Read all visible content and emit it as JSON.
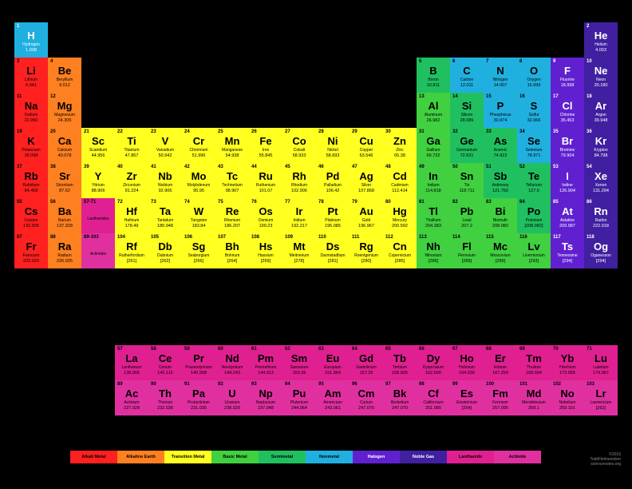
{
  "colors": {
    "alkali": "#ff2020",
    "alkaline": "#ff8020",
    "transition": "#ffff20",
    "basic": "#40d040",
    "semimetal": "#20c060",
    "nonmetal": "#20b0e0",
    "halogen": "#6020d0",
    "noble": "#4020a0",
    "lanthanide": "#e02090",
    "actinide": "#e030a0"
  },
  "legend": [
    {
      "label": "Alkali Metal",
      "c": "alkali"
    },
    {
      "label": "Alkaline Earth",
      "c": "alkaline"
    },
    {
      "label": "Transition Metal",
      "c": "transition"
    },
    {
      "label": "Basic Metal",
      "c": "basic"
    },
    {
      "label": "Semimetal",
      "c": "semimetal"
    },
    {
      "label": "Nonmetal",
      "c": "nonmetal"
    },
    {
      "label": "Halogen",
      "c": "halogen"
    },
    {
      "label": "Noble Gas",
      "c": "noble"
    },
    {
      "label": "Lanthanide",
      "c": "lanthanide"
    },
    {
      "label": "Actinide",
      "c": "actinide"
    }
  ],
  "credit": "©2016\nToddHelmenstine\nsciencenotes.org",
  "lanth_label": {
    "n": "57-71",
    "name": "Lanthanides",
    "c": "lanthanide"
  },
  "act_label": {
    "n": "89-103",
    "name": "Actinides",
    "c": "actinide"
  },
  "rows": [
    [
      {
        "n": 1,
        "s": "H",
        "name": "Hydrogen",
        "m": "1.008",
        "c": "nonmetal",
        "fg": "#fff"
      },
      null,
      null,
      null,
      null,
      null,
      null,
      null,
      null,
      null,
      null,
      null,
      null,
      null,
      null,
      null,
      null,
      {
        "n": 2,
        "s": "He",
        "name": "Helium",
        "m": "4.003",
        "c": "noble",
        "fg": "#fff"
      }
    ],
    [
      {
        "n": 3,
        "s": "Li",
        "name": "Lithium",
        "m": "6.941",
        "c": "alkali"
      },
      {
        "n": 4,
        "s": "Be",
        "name": "Beryllium",
        "m": "9.012",
        "c": "alkaline"
      },
      null,
      null,
      null,
      null,
      null,
      null,
      null,
      null,
      null,
      null,
      {
        "n": 5,
        "s": "B",
        "name": "Boron",
        "m": "10.811",
        "c": "semimetal"
      },
      {
        "n": 6,
        "s": "C",
        "name": "Carbon",
        "m": "12.011",
        "c": "nonmetal"
      },
      {
        "n": 7,
        "s": "N",
        "name": "Nitrogen",
        "m": "14.007",
        "c": "nonmetal"
      },
      {
        "n": 8,
        "s": "O",
        "name": "Oxygen",
        "m": "15.999",
        "c": "nonmetal"
      },
      {
        "n": 9,
        "s": "F",
        "name": "Fluorine",
        "m": "18.998",
        "c": "halogen",
        "fg": "#fff"
      },
      {
        "n": 10,
        "s": "Ne",
        "name": "Neon",
        "m": "20.180",
        "c": "noble",
        "fg": "#fff"
      }
    ],
    [
      {
        "n": 11,
        "s": "Na",
        "name": "Sodium",
        "m": "22.990",
        "c": "alkali"
      },
      {
        "n": 12,
        "s": "Mg",
        "name": "Magnesium",
        "m": "24.305",
        "c": "alkaline"
      },
      null,
      null,
      null,
      null,
      null,
      null,
      null,
      null,
      null,
      null,
      {
        "n": 13,
        "s": "Al",
        "name": "Aluminum",
        "m": "26.982",
        "c": "basic"
      },
      {
        "n": 14,
        "s": "Si",
        "name": "Silicon",
        "m": "28.086",
        "c": "semimetal"
      },
      {
        "n": 15,
        "s": "P",
        "name": "Phosphorus",
        "m": "30.974",
        "c": "nonmetal"
      },
      {
        "n": 16,
        "s": "S",
        "name": "Sulfur",
        "m": "32.066",
        "c": "nonmetal"
      },
      {
        "n": 17,
        "s": "Cl",
        "name": "Chlorine",
        "m": "35.453",
        "c": "halogen",
        "fg": "#fff"
      },
      {
        "n": 18,
        "s": "Ar",
        "name": "Argon",
        "m": "39.948",
        "c": "noble",
        "fg": "#fff"
      }
    ],
    [
      {
        "n": 19,
        "s": "K",
        "name": "Potassium",
        "m": "39.098",
        "c": "alkali"
      },
      {
        "n": 20,
        "s": "Ca",
        "name": "Calcium",
        "m": "40.078",
        "c": "alkaline"
      },
      {
        "n": 21,
        "s": "Sc",
        "name": "Scandium",
        "m": "44.956",
        "c": "transition"
      },
      {
        "n": 22,
        "s": "Ti",
        "name": "Titanium",
        "m": "47.867",
        "c": "transition"
      },
      {
        "n": 23,
        "s": "V",
        "name": "Vanadium",
        "m": "50.942",
        "c": "transition"
      },
      {
        "n": 24,
        "s": "Cr",
        "name": "Chromium",
        "m": "51.996",
        "c": "transition"
      },
      {
        "n": 25,
        "s": "Mn",
        "name": "Manganese",
        "m": "54.938",
        "c": "transition"
      },
      {
        "n": 26,
        "s": "Fe",
        "name": "Iron",
        "m": "55.845",
        "c": "transition"
      },
      {
        "n": 27,
        "s": "Co",
        "name": "Cobalt",
        "m": "58.933",
        "c": "transition"
      },
      {
        "n": 28,
        "s": "Ni",
        "name": "Nickel",
        "m": "58.693",
        "c": "transition"
      },
      {
        "n": 29,
        "s": "Cu",
        "name": "Copper",
        "m": "63.546",
        "c": "transition"
      },
      {
        "n": 30,
        "s": "Zn",
        "name": "Zinc",
        "m": "65.38",
        "c": "transition"
      },
      {
        "n": 31,
        "s": "Ga",
        "name": "Gallium",
        "m": "69.732",
        "c": "basic"
      },
      {
        "n": 32,
        "s": "Ge",
        "name": "Germanium",
        "m": "72.631",
        "c": "semimetal"
      },
      {
        "n": 33,
        "s": "As",
        "name": "Arsenic",
        "m": "74.922",
        "c": "semimetal"
      },
      {
        "n": 34,
        "s": "Se",
        "name": "Selenium",
        "m": "78.971",
        "c": "nonmetal"
      },
      {
        "n": 35,
        "s": "Br",
        "name": "Bromine",
        "m": "79.904",
        "c": "halogen",
        "fg": "#fff"
      },
      {
        "n": 36,
        "s": "Kr",
        "name": "Krypton",
        "m": "84.798",
        "c": "noble",
        "fg": "#fff"
      }
    ],
    [
      {
        "n": 37,
        "s": "Rb",
        "name": "Rubidium",
        "m": "84.468",
        "c": "alkali"
      },
      {
        "n": 38,
        "s": "Sr",
        "name": "Strontium",
        "m": "87.62",
        "c": "alkaline"
      },
      {
        "n": 39,
        "s": "Y",
        "name": "Yttrium",
        "m": "88.906",
        "c": "transition"
      },
      {
        "n": 40,
        "s": "Zr",
        "name": "Zirconium",
        "m": "91.224",
        "c": "transition"
      },
      {
        "n": 41,
        "s": "Nb",
        "name": "Niobium",
        "m": "92.906",
        "c": "transition"
      },
      {
        "n": 42,
        "s": "Mo",
        "name": "Molybdenum",
        "m": "95.95",
        "c": "transition"
      },
      {
        "n": 43,
        "s": "Tc",
        "name": "Technetium",
        "m": "98.907",
        "c": "transition"
      },
      {
        "n": 44,
        "s": "Ru",
        "name": "Ruthenium",
        "m": "101.07",
        "c": "transition"
      },
      {
        "n": 45,
        "s": "Rh",
        "name": "Rhodium",
        "m": "102.906",
        "c": "transition"
      },
      {
        "n": 46,
        "s": "Pd",
        "name": "Palladium",
        "m": "106.42",
        "c": "transition"
      },
      {
        "n": 47,
        "s": "Ag",
        "name": "Silver",
        "m": "107.868",
        "c": "transition"
      },
      {
        "n": 48,
        "s": "Cd",
        "name": "Cadmium",
        "m": "112.414",
        "c": "transition"
      },
      {
        "n": 49,
        "s": "In",
        "name": "Indium",
        "m": "114.818",
        "c": "basic"
      },
      {
        "n": 50,
        "s": "Sn",
        "name": "Tin",
        "m": "118.711",
        "c": "basic"
      },
      {
        "n": 51,
        "s": "Sb",
        "name": "Antimony",
        "m": "121.760",
        "c": "semimetal"
      },
      {
        "n": 52,
        "s": "Te",
        "name": "Tellurium",
        "m": "127.6",
        "c": "semimetal"
      },
      {
        "n": 53,
        "s": "I",
        "name": "Iodine",
        "m": "126.904",
        "c": "halogen",
        "fg": "#fff"
      },
      {
        "n": 54,
        "s": "Xe",
        "name": "Xenon",
        "m": "131.294",
        "c": "noble",
        "fg": "#fff"
      }
    ],
    [
      {
        "n": 55,
        "s": "Cs",
        "name": "Cesium",
        "m": "132.905",
        "c": "alkali"
      },
      {
        "n": 56,
        "s": "Ba",
        "name": "Barium",
        "m": "137.328",
        "c": "alkaline"
      },
      {
        "lbl": "lanth"
      },
      {
        "n": 72,
        "s": "Hf",
        "name": "Hafnium",
        "m": "178.49",
        "c": "transition"
      },
      {
        "n": 73,
        "s": "Ta",
        "name": "Tantalum",
        "m": "180.948",
        "c": "transition"
      },
      {
        "n": 74,
        "s": "W",
        "name": "Tungsten",
        "m": "183.84",
        "c": "transition"
      },
      {
        "n": 75,
        "s": "Re",
        "name": "Rhenium",
        "m": "186.207",
        "c": "transition"
      },
      {
        "n": 76,
        "s": "Os",
        "name": "Osmium",
        "m": "190.23",
        "c": "transition"
      },
      {
        "n": 77,
        "s": "Ir",
        "name": "Iridium",
        "m": "192.217",
        "c": "transition"
      },
      {
        "n": 78,
        "s": "Pt",
        "name": "Platinum",
        "m": "195.085",
        "c": "transition"
      },
      {
        "n": 79,
        "s": "Au",
        "name": "Gold",
        "m": "196.967",
        "c": "transition"
      },
      {
        "n": 80,
        "s": "Hg",
        "name": "Mercury",
        "m": "200.592",
        "c": "transition"
      },
      {
        "n": 81,
        "s": "Tl",
        "name": "Thallium",
        "m": "204.383",
        "c": "basic"
      },
      {
        "n": 82,
        "s": "Pb",
        "name": "Lead",
        "m": "207.2",
        "c": "basic"
      },
      {
        "n": 83,
        "s": "Bi",
        "name": "Bismuth",
        "m": "208.980",
        "c": "basic"
      },
      {
        "n": 84,
        "s": "Po",
        "name": "Polonium",
        "m": "[208.982]",
        "c": "semimetal"
      },
      {
        "n": 85,
        "s": "At",
        "name": "Astatine",
        "m": "209.987",
        "c": "halogen",
        "fg": "#fff"
      },
      {
        "n": 86,
        "s": "Rn",
        "name": "Radon",
        "m": "222.018",
        "c": "noble",
        "fg": "#fff"
      }
    ],
    [
      {
        "n": 87,
        "s": "Fr",
        "name": "Francium",
        "m": "223.020",
        "c": "alkali"
      },
      {
        "n": 88,
        "s": "Ra",
        "name": "Radium",
        "m": "226.025",
        "c": "alkaline"
      },
      {
        "lbl": "act"
      },
      {
        "n": 104,
        "s": "Rf",
        "name": "Rutherfordium",
        "m": "[261]",
        "c": "transition"
      },
      {
        "n": 105,
        "s": "Db",
        "name": "Dubnium",
        "m": "[262]",
        "c": "transition"
      },
      {
        "n": 106,
        "s": "Sg",
        "name": "Seaborgium",
        "m": "[266]",
        "c": "transition"
      },
      {
        "n": 107,
        "s": "Bh",
        "name": "Bohrium",
        "m": "[264]",
        "c": "transition"
      },
      {
        "n": 108,
        "s": "Hs",
        "name": "Hassium",
        "m": "[269]",
        "c": "transition"
      },
      {
        "n": 109,
        "s": "Mt",
        "name": "Meitnerium",
        "m": "[278]",
        "c": "transition"
      },
      {
        "n": 110,
        "s": "Ds",
        "name": "Darmstadtium",
        "m": "[281]",
        "c": "transition"
      },
      {
        "n": 111,
        "s": "Rg",
        "name": "Roentgenium",
        "m": "[280]",
        "c": "transition"
      },
      {
        "n": 112,
        "s": "Cn",
        "name": "Copernicium",
        "m": "[285]",
        "c": "transition"
      },
      {
        "n": 113,
        "s": "Nh",
        "name": "Nihonium",
        "m": "[286]",
        "c": "basic"
      },
      {
        "n": 114,
        "s": "Fl",
        "name": "Flerovium",
        "m": "[289]",
        "c": "basic"
      },
      {
        "n": 115,
        "s": "Mc",
        "name": "Moscovium",
        "m": "[289]",
        "c": "basic"
      },
      {
        "n": 116,
        "s": "Lv",
        "name": "Livermorium",
        "m": "[293]",
        "c": "basic"
      },
      {
        "n": 117,
        "s": "Ts",
        "name": "Tennessine",
        "m": "[294]",
        "c": "halogen",
        "fg": "#fff"
      },
      {
        "n": 118,
        "s": "Og",
        "name": "Oganesson",
        "m": "[294]",
        "c": "noble",
        "fg": "#fff"
      }
    ]
  ],
  "lanth": [
    {
      "n": 57,
      "s": "La",
      "name": "Lanthanum",
      "m": "138.905",
      "c": "lanthanide"
    },
    {
      "n": 58,
      "s": "Ce",
      "name": "Cerium",
      "m": "140.116",
      "c": "lanthanide"
    },
    {
      "n": 59,
      "s": "Pr",
      "name": "Praseodymium",
      "m": "140.908",
      "c": "lanthanide"
    },
    {
      "n": 60,
      "s": "Nd",
      "name": "Neodymium",
      "m": "144.243",
      "c": "lanthanide"
    },
    {
      "n": 61,
      "s": "Pm",
      "name": "Promethium",
      "m": "144.913",
      "c": "lanthanide"
    },
    {
      "n": 62,
      "s": "Sm",
      "name": "Samarium",
      "m": "150.36",
      "c": "lanthanide"
    },
    {
      "n": 63,
      "s": "Eu",
      "name": "Europium",
      "m": "151.964",
      "c": "lanthanide"
    },
    {
      "n": 64,
      "s": "Gd",
      "name": "Gadolinium",
      "m": "157.25",
      "c": "lanthanide"
    },
    {
      "n": 65,
      "s": "Tb",
      "name": "Terbium",
      "m": "158.925",
      "c": "lanthanide"
    },
    {
      "n": 66,
      "s": "Dy",
      "name": "Dysprosium",
      "m": "162.500",
      "c": "lanthanide"
    },
    {
      "n": 67,
      "s": "Ho",
      "name": "Holmium",
      "m": "164.930",
      "c": "lanthanide"
    },
    {
      "n": 68,
      "s": "Er",
      "name": "Erbium",
      "m": "167.259",
      "c": "lanthanide"
    },
    {
      "n": 69,
      "s": "Tm",
      "name": "Thulium",
      "m": "168.934",
      "c": "lanthanide"
    },
    {
      "n": 70,
      "s": "Yb",
      "name": "Ytterbium",
      "m": "173.055",
      "c": "lanthanide"
    },
    {
      "n": 71,
      "s": "Lu",
      "name": "Lutetium",
      "m": "174.967",
      "c": "lanthanide"
    }
  ],
  "act": [
    {
      "n": 89,
      "s": "Ac",
      "name": "Actinium",
      "m": "227.028",
      "c": "actinide"
    },
    {
      "n": 90,
      "s": "Th",
      "name": "Thorium",
      "m": "232.038",
      "c": "actinide"
    },
    {
      "n": 91,
      "s": "Pa",
      "name": "Protactinium",
      "m": "231.036",
      "c": "actinide"
    },
    {
      "n": 92,
      "s": "U",
      "name": "Uranium",
      "m": "238.029",
      "c": "actinide"
    },
    {
      "n": 93,
      "s": "Np",
      "name": "Neptunium",
      "m": "237.048",
      "c": "actinide"
    },
    {
      "n": 94,
      "s": "Pu",
      "name": "Plutonium",
      "m": "244.064",
      "c": "actinide"
    },
    {
      "n": 95,
      "s": "Am",
      "name": "Americium",
      "m": "243.061",
      "c": "actinide"
    },
    {
      "n": 96,
      "s": "Cm",
      "name": "Curium",
      "m": "247.070",
      "c": "actinide"
    },
    {
      "n": 97,
      "s": "Bk",
      "name": "Berkelium",
      "m": "247.070",
      "c": "actinide"
    },
    {
      "n": 98,
      "s": "Cf",
      "name": "Californium",
      "m": "251.080",
      "c": "actinide"
    },
    {
      "n": 99,
      "s": "Es",
      "name": "Einsteinium",
      "m": "[254]",
      "c": "actinide"
    },
    {
      "n": 100,
      "s": "Fm",
      "name": "Fermium",
      "m": "257.095",
      "c": "actinide"
    },
    {
      "n": 101,
      "s": "Md",
      "name": "Mendelevium",
      "m": "258.1",
      "c": "actinide"
    },
    {
      "n": 102,
      "s": "No",
      "name": "Nobelium",
      "m": "259.101",
      "c": "actinide"
    },
    {
      "n": 103,
      "s": "Lr",
      "name": "Lawrencium",
      "m": "[262]",
      "c": "actinide"
    }
  ]
}
